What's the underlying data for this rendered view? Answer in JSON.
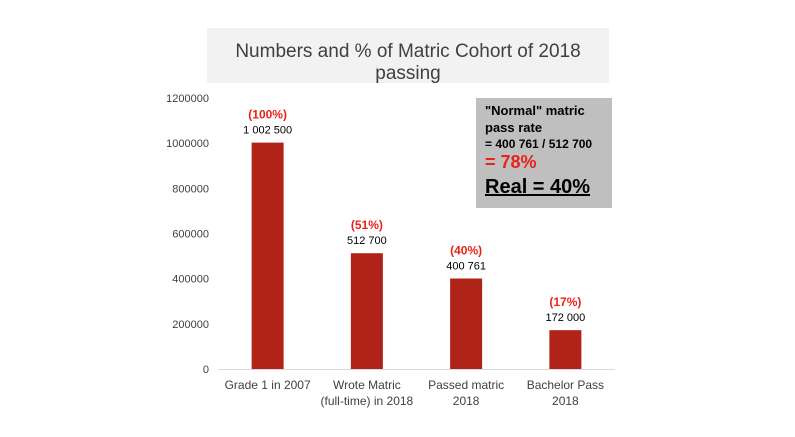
{
  "chart_data": {
    "type": "bar",
    "title": "Numbers and % of Matric Cohort of 2018 passing",
    "categories": [
      [
        "Grade 1 in 2007"
      ],
      [
        "Wrote Matric",
        "(full-time) in 2018"
      ],
      [
        "Passed matric",
        "2018"
      ],
      [
        "Bachelor Pass",
        "2018"
      ]
    ],
    "values": [
      1002500,
      512700,
      400761,
      172000
    ],
    "value_labels": [
      "1 002 500",
      "512 700",
      "400 761",
      "172 000"
    ],
    "percent_labels": [
      "(100%)",
      "(51%)",
      "(40%)",
      "(17%)"
    ],
    "yticks": [
      "0",
      "200000",
      "400000",
      "600000",
      "800000",
      "1000000",
      "1200000"
    ],
    "ylim": [
      0,
      1200000
    ],
    "grid": false,
    "legend": "none",
    "bar_color": "#b02318",
    "percent_color": "#e8231b"
  },
  "callout": {
    "line1": "\"Normal\" matric",
    "line2": "pass rate",
    "line3": "= 400 761 / 512 700",
    "line4": "= 78%",
    "line5": "Real = 40%"
  }
}
